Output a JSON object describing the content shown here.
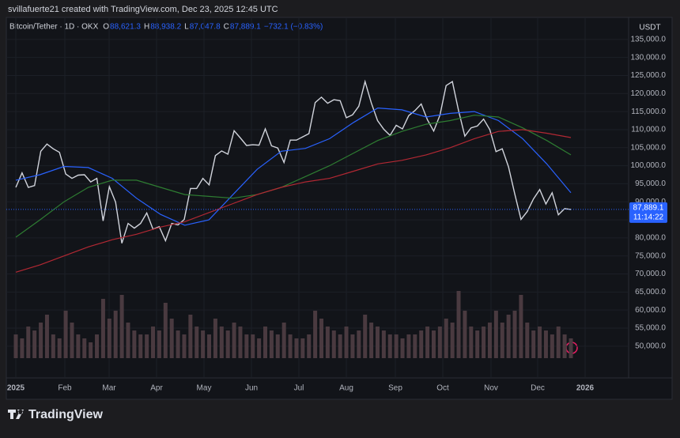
{
  "chart_data": {
    "type": "price",
    "attribution": "svillafuerte21 created with TradingView.com, Dec 23, 2025 12:45 UTC",
    "symbol": "Bitcoin/Tether · 1D · OKX",
    "ohlc": [
      {
        "label": "O",
        "value": "88,621.3"
      },
      {
        "label": "H",
        "value": "88,938.2"
      },
      {
        "label": "L",
        "value": "87,047.8"
      },
      {
        "label": "C",
        "value": "87,889.1"
      }
    ],
    "change": "−732.1 (−0.83%)",
    "currency": "USDT",
    "last_price_label": "87,889.1",
    "countdown": "11:14:22",
    "brand": "TradingView",
    "xticks": [
      "2025",
      "Feb",
      "Mar",
      "Apr",
      "May",
      "Jun",
      "Jul",
      "Aug",
      "Sep",
      "Oct",
      "Nov",
      "Dec",
      "2026"
    ],
    "ylim": [
      41200,
      141100
    ],
    "yticks": [
      {
        "value": 50000,
        "label": "50,000.0"
      },
      {
        "value": 55000,
        "label": "55,000.0"
      },
      {
        "value": 60000,
        "label": "60,000.0"
      },
      {
        "value": 65000,
        "label": "65,000.0"
      },
      {
        "value": 70000,
        "label": "70,000.0"
      },
      {
        "value": 75000,
        "label": "75,000.0"
      },
      {
        "value": 80000,
        "label": "80,000.0"
      },
      {
        "value": 85000,
        "label": "85,000.0"
      },
      {
        "value": 90000,
        "label": "90,000.0"
      },
      {
        "value": 95000,
        "label": "95,000.0"
      },
      {
        "value": 100000,
        "label": "100,000.0"
      },
      {
        "value": 105000,
        "label": "105,000.0"
      },
      {
        "value": 110000,
        "label": "110,000.0"
      },
      {
        "value": 115000,
        "label": "115,000.0"
      },
      {
        "value": 120000,
        "label": "120,000.0"
      },
      {
        "value": 125000,
        "label": "125,000.0"
      },
      {
        "value": 130000,
        "label": "130,000.0"
      },
      {
        "value": 135000,
        "label": "135,000.0"
      }
    ],
    "grid": true,
    "series": [
      {
        "color": "#d1d4dc",
        "values": [
          94000,
          98000,
          94000,
          94500,
          104000,
          106000,
          104700,
          103700,
          97700,
          96500,
          97400,
          97500,
          95500,
          96500,
          84700,
          94200,
          89900,
          78500,
          84000,
          82700,
          84000,
          86900,
          82400,
          83100,
          79200,
          84000,
          83600,
          85100,
          93700,
          93700,
          96500,
          94700,
          102800,
          104100,
          103200,
          109700,
          107700,
          105600,
          105800,
          105700,
          110200,
          105500,
          104900,
          100900,
          107100,
          107100,
          108000,
          108900,
          117500,
          119000,
          117300,
          118300,
          118000,
          113300,
          114100,
          116500,
          123300,
          117400,
          112500,
          110100,
          108400,
          111200,
          110200,
          113900,
          115300,
          117100,
          112700,
          109600,
          114000,
          122200,
          123300,
          115200,
          108200,
          110500,
          111000,
          112900,
          110000,
          103900,
          104700,
          99700,
          92200,
          85100,
          87300,
          90800,
          93400,
          89400,
          92500,
          86400,
          88100,
          87889.1
        ]
      },
      {
        "color": "#2962ff",
        "values": [
          96000,
          97500,
          99800,
          99500,
          96500,
          91000,
          86500,
          83500,
          85000,
          92000,
          99000,
          104000,
          104800,
          107500,
          112000,
          116000,
          115500,
          113500,
          114500,
          115000,
          112500,
          107500,
          100500,
          92500
        ]
      },
      {
        "color": "#2e7d32",
        "values": [
          80200,
          85000,
          90000,
          94000,
          96000,
          96000,
          94000,
          92000,
          91500,
          91000,
          92000,
          94000,
          97000,
          100000,
          103500,
          107000,
          109500,
          111500,
          112500,
          114000,
          113500,
          110500,
          107000,
          103000
        ]
      },
      {
        "color": "#b22833",
        "values": [
          70500,
          72500,
          75000,
          77500,
          79500,
          81000,
          83000,
          84500,
          87000,
          89500,
          92000,
          94000,
          95500,
          96500,
          98500,
          100500,
          101500,
          103000,
          105000,
          107500,
          109500,
          110000,
          109000,
          107800
        ]
      }
    ],
    "volume": {
      "color": "#4a3a40",
      "vlim": [
        0,
        100
      ],
      "values": [
        30,
        25,
        40,
        35,
        45,
        55,
        30,
        25,
        60,
        45,
        30,
        25,
        20,
        30,
        75,
        50,
        60,
        80,
        45,
        35,
        30,
        30,
        40,
        35,
        70,
        50,
        35,
        30,
        55,
        40,
        35,
        30,
        50,
        40,
        35,
        45,
        40,
        30,
        30,
        25,
        40,
        35,
        30,
        45,
        30,
        25,
        25,
        30,
        60,
        50,
        40,
        35,
        30,
        40,
        30,
        35,
        55,
        45,
        40,
        35,
        30,
        30,
        25,
        30,
        30,
        35,
        40,
        35,
        40,
        50,
        45,
        85,
        60,
        40,
        35,
        40,
        45,
        60,
        45,
        55,
        60,
        80,
        45,
        35,
        40,
        35,
        30,
        40,
        30,
        25
      ]
    }
  }
}
